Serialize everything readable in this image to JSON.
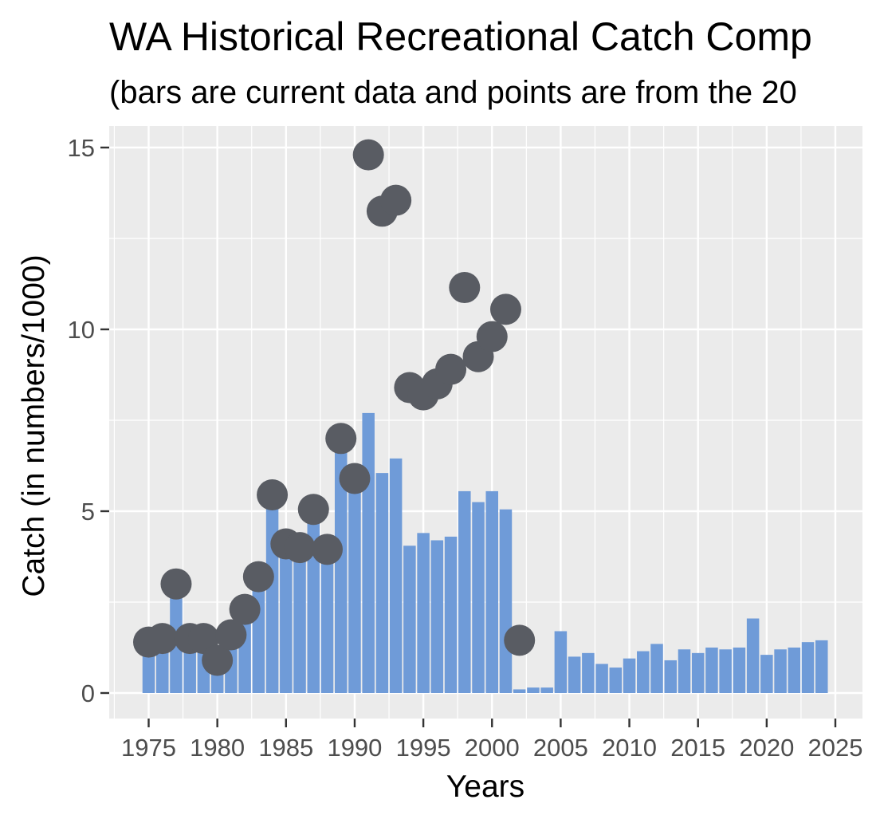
{
  "chart_data": {
    "type": "bar",
    "title": "WA Historical Recreational Catch Comp",
    "subtitle": "(bars are current data and points are from the 20",
    "xlabel": "Years",
    "ylabel": "Catch (in numbers/1000)",
    "xlim": [
      1972.5,
      2026.9
    ],
    "ylim": [
      -0.7,
      15.5
    ],
    "x_ticks": [
      1975,
      1980,
      1985,
      1990,
      1995,
      2000,
      2005,
      2010,
      2015,
      2020,
      2025
    ],
    "y_ticks": [
      0,
      5,
      10,
      15
    ],
    "grid": true,
    "legend": "none",
    "series": [
      {
        "kind": "bar",
        "x": [
          1975,
          1976,
          1977,
          1978,
          1979,
          1980,
          1981,
          1982,
          1983,
          1984,
          1985,
          1986,
          1987,
          1988,
          1989,
          1990,
          1991,
          1992,
          1993,
          1994,
          1995,
          1996,
          1997,
          1998,
          1999,
          2000,
          2001,
          2002,
          2003,
          2004,
          2005,
          2006,
          2007,
          2008,
          2009,
          2010,
          2011,
          2012,
          2013,
          2014,
          2015,
          2016,
          2017,
          2018,
          2019,
          2020,
          2021,
          2022,
          2023,
          2024
        ],
        "values": [
          1.4,
          1.5,
          3.0,
          1.5,
          1.5,
          0.9,
          1.6,
          2.3,
          3.2,
          5.4,
          4.1,
          4.0,
          5.0,
          4.0,
          7.0,
          5.9,
          7.7,
          6.05,
          6.45,
          4.05,
          4.4,
          4.2,
          4.3,
          5.55,
          5.25,
          5.55,
          5.05,
          0.1,
          0.15,
          0.15,
          1.7,
          1.0,
          1.1,
          0.8,
          0.7,
          0.95,
          1.15,
          1.35,
          0.9,
          1.2,
          1.1,
          1.25,
          1.2,
          1.25,
          2.05,
          1.05,
          1.2,
          1.25,
          1.4,
          1.45
        ]
      },
      {
        "kind": "point",
        "x": [
          1975,
          1976,
          1977,
          1978,
          1979,
          1980,
          1981,
          1982,
          1983,
          1984,
          1985,
          1986,
          1987,
          1988,
          1989,
          1990,
          1991,
          1992,
          1993,
          1994,
          1995,
          1996,
          1997,
          1998,
          1999,
          2000,
          2001,
          2002
        ],
        "values": [
          1.4,
          1.5,
          3.0,
          1.5,
          1.5,
          0.9,
          1.6,
          2.3,
          3.2,
          5.45,
          4.1,
          4.0,
          5.05,
          3.95,
          7.0,
          5.9,
          14.8,
          13.25,
          13.55,
          8.4,
          8.2,
          8.5,
          8.9,
          11.15,
          9.25,
          9.8,
          10.55,
          1.45
        ]
      }
    ],
    "colors": {
      "panel_background": "#ebebeb",
      "grid_major": "#ffffff",
      "bar_fill": "#6f9bd8",
      "point_fill": "#595c63"
    }
  }
}
